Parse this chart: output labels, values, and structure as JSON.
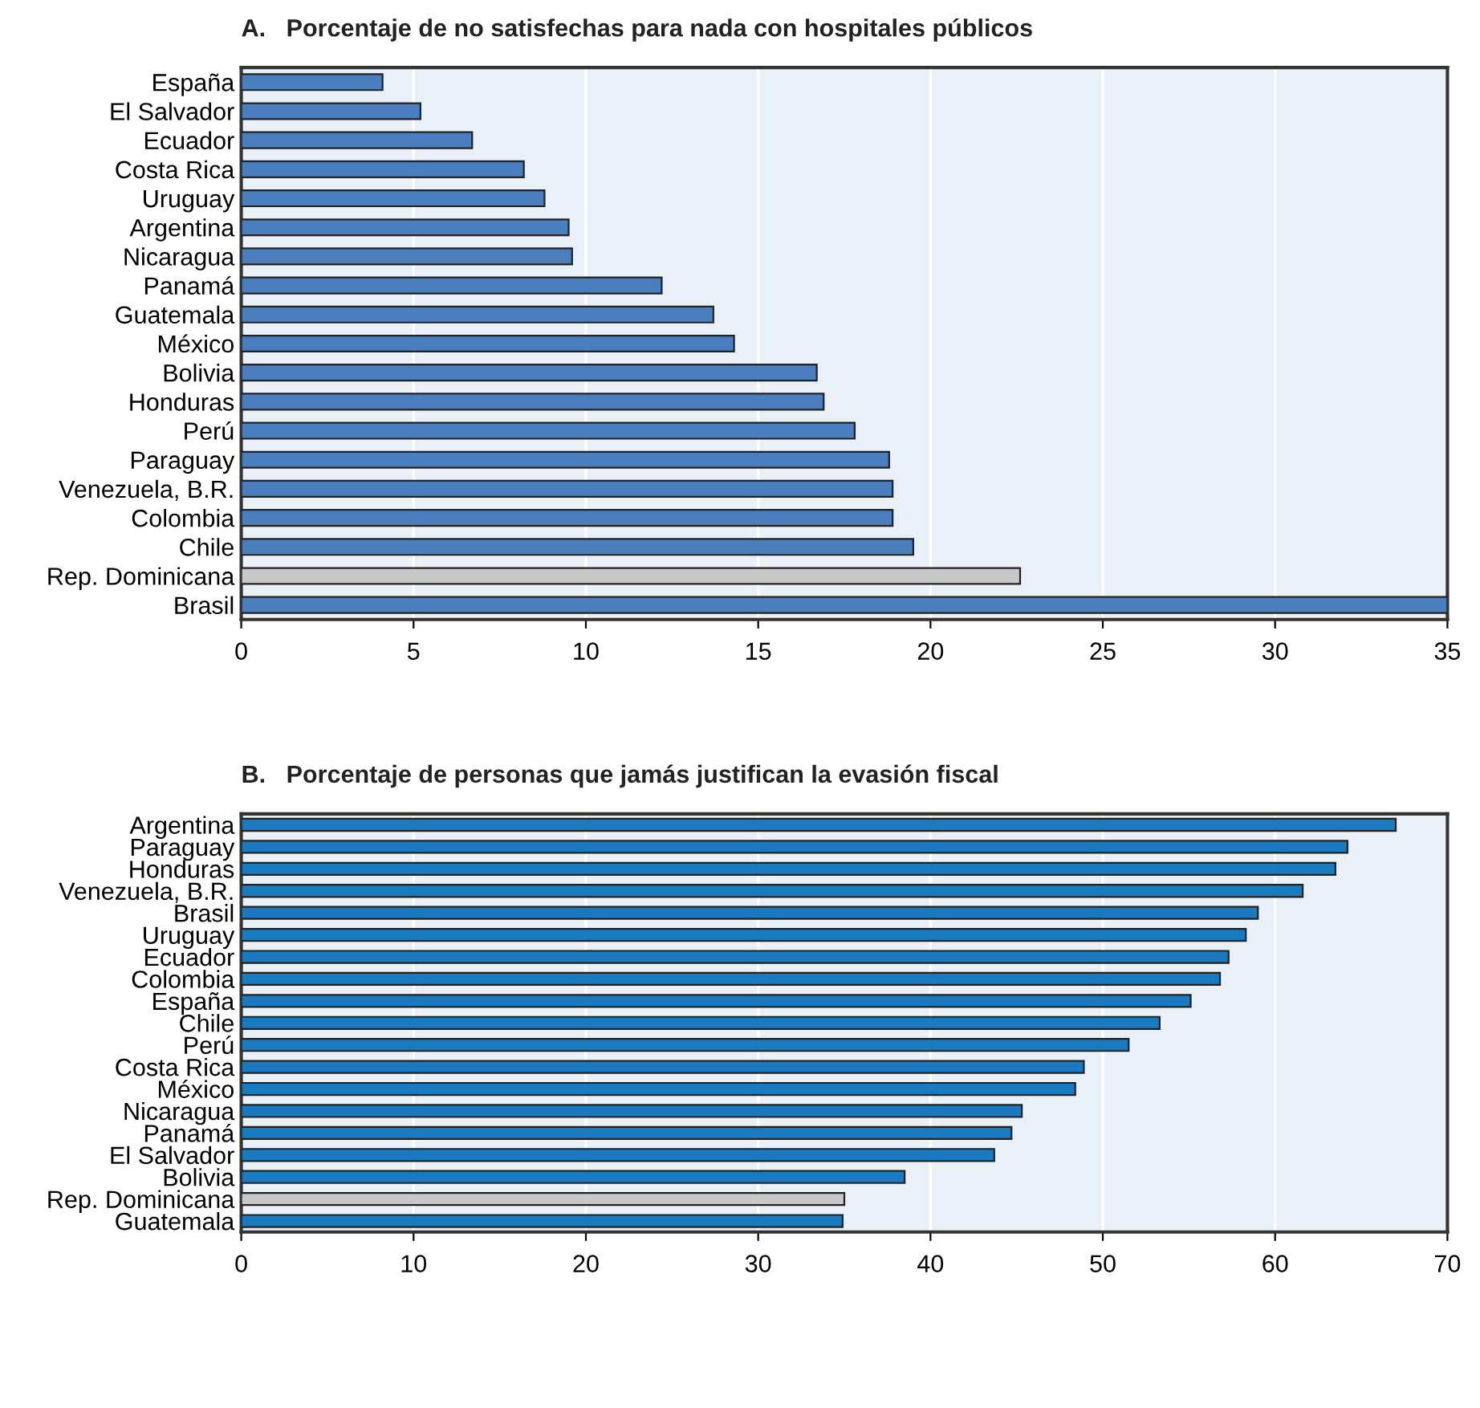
{
  "chart_data": [
    {
      "type": "bar",
      "orientation": "horizontal",
      "title": "A.   Porcentaje de no satisfechas para nada con hospitales públicos",
      "categories": [
        "España",
        "El Salvador",
        "Ecuador",
        "Costa Rica",
        "Uruguay",
        "Argentina",
        "Nicaragua",
        "Panamá",
        "Guatemala",
        "México",
        "Bolivia",
        "Honduras",
        "Perú",
        "Paraguay",
        "Venezuela, B.R.",
        "Colombia",
        "Chile",
        "Rep. Dominicana",
        "Brasil"
      ],
      "values": [
        4.1,
        5.2,
        6.7,
        8.2,
        8.8,
        9.5,
        9.6,
        12.2,
        13.7,
        14.3,
        16.7,
        16.9,
        17.8,
        18.8,
        18.9,
        18.9,
        19.5,
        22.6,
        35
      ],
      "colors": [
        "#4a7ebf",
        "#4a7ebf",
        "#4a7ebf",
        "#4a7ebf",
        "#4a7ebf",
        "#4a7ebf",
        "#4a7ebf",
        "#4a7ebf",
        "#4a7ebf",
        "#4a7ebf",
        "#4a7ebf",
        "#4a7ebf",
        "#4a7ebf",
        "#4a7ebf",
        "#4a7ebf",
        "#4a7ebf",
        "#4a7ebf",
        "#c8c8c8",
        "#4a7ebf"
      ],
      "xlim": [
        0,
        35
      ],
      "xticks": [
        0,
        5,
        10,
        15,
        20,
        25,
        30,
        35
      ],
      "grid": "x"
    },
    {
      "type": "bar",
      "orientation": "horizontal",
      "title": "B.   Porcentaje de personas que jamás justifican la evasión fiscal",
      "categories": [
        "Argentina",
        "Paraguay",
        "Honduras",
        "Venezuela, B.R.",
        "Brasil",
        "Uruguay",
        "Ecuador",
        "Colombia",
        "España",
        "Chile",
        "Perú",
        "Costa Rica",
        "México",
        "Nicaragua",
        "Panamá",
        "El Salvador",
        "Bolivia",
        "Rep. Dominicana",
        "Guatemala"
      ],
      "values": [
        67.0,
        64.2,
        63.5,
        61.6,
        59.0,
        58.3,
        57.3,
        56.8,
        55.1,
        53.3,
        51.5,
        48.9,
        48.4,
        45.3,
        44.7,
        43.7,
        38.5,
        35.0,
        34.9
      ],
      "colors": [
        "#1a7abf",
        "#1a7abf",
        "#1a7abf",
        "#1a7abf",
        "#1a7abf",
        "#1a7abf",
        "#1a7abf",
        "#1a7abf",
        "#1a7abf",
        "#1a7abf",
        "#1a7abf",
        "#1a7abf",
        "#1a7abf",
        "#1a7abf",
        "#1a7abf",
        "#1a7abf",
        "#1a7abf",
        "#c8c8c8",
        "#1a7abf"
      ],
      "xlim": [
        0,
        70
      ],
      "xticks": [
        0,
        10,
        20,
        30,
        40,
        50,
        60,
        70
      ],
      "grid": "x"
    }
  ]
}
